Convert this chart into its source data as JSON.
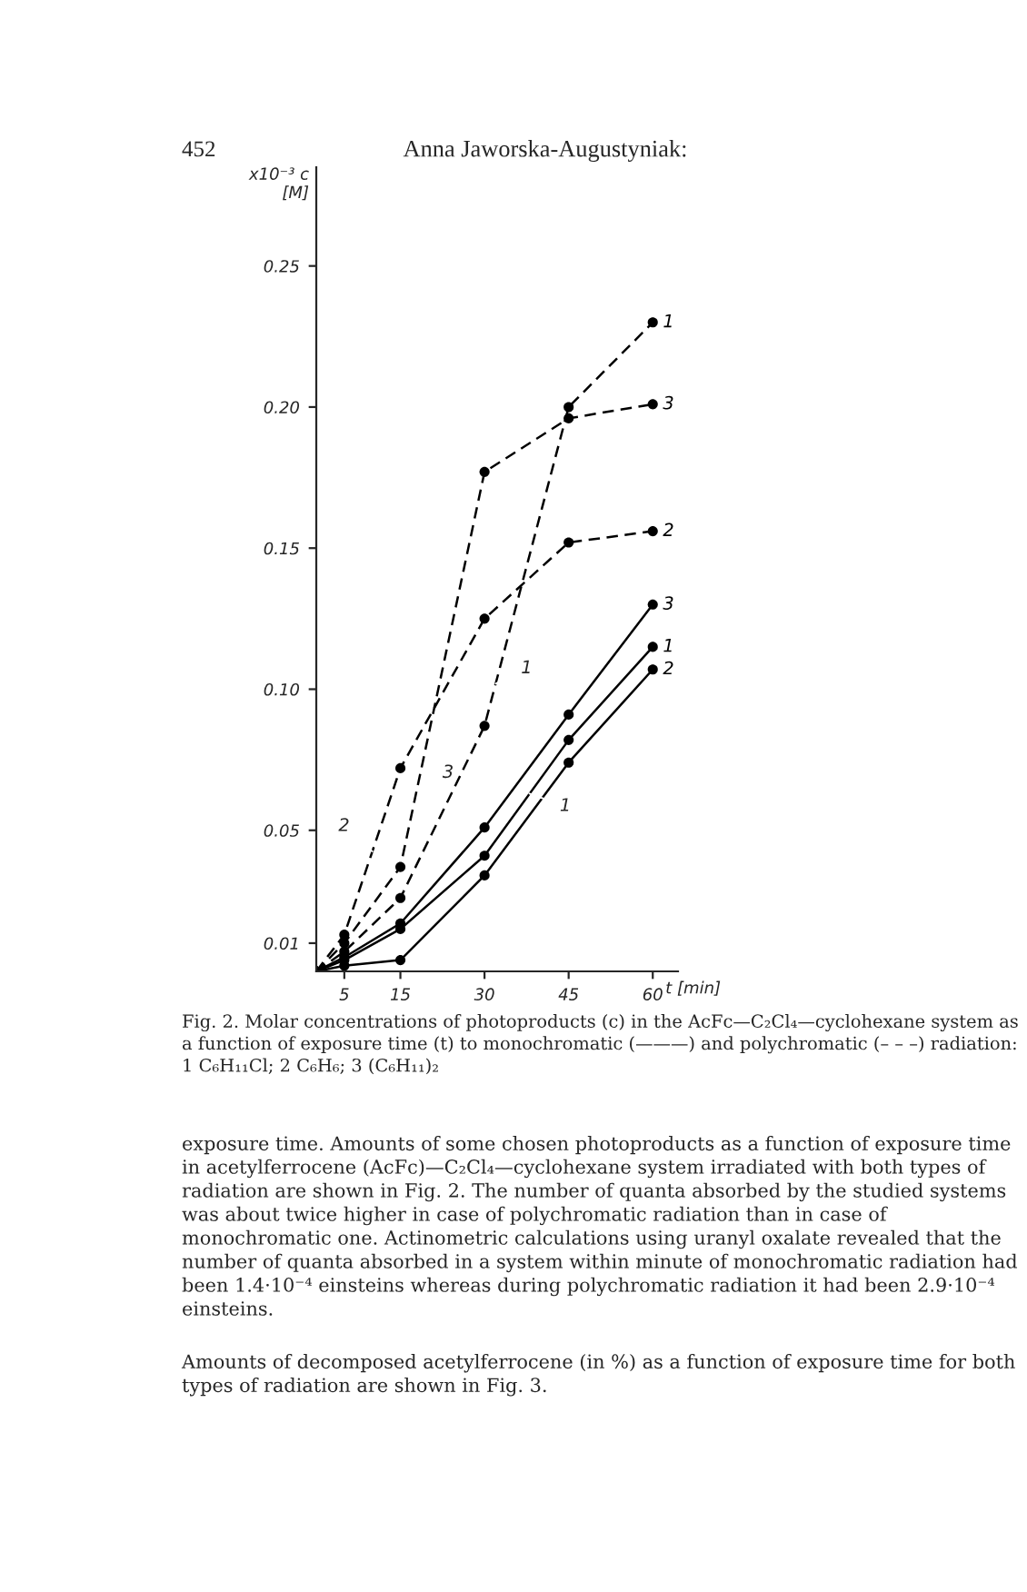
{
  "chart_data": {
    "type": "line",
    "title": "Anna Jaworska-Augustyniak:",
    "subtitle": "452",
    "xlabel": "t [min]",
    "ylabel": "x10⁻³ c\n[M]",
    "series": [
      {
        "name": "1",
        "color": "#000000",
        "line_style": "solid",
        "x": [
          0,
          5,
          15,
          30,
          45,
          60
        ],
        "values": [
          0,
          0.004,
          0.015,
          0.041,
          0.082,
          0.115
        ]
      },
      {
        "name": "2",
        "color": "#000000",
        "line_style": "solid",
        "x": [
          0,
          5,
          15,
          30,
          45,
          60
        ],
        "values": [
          0,
          0.002,
          0.004,
          0.034,
          0.074,
          0.107
        ]
      },
      {
        "name": "3",
        "color": "#000000",
        "line_style": "solid",
        "x": [
          0,
          5,
          15,
          30,
          45,
          60
        ],
        "values": [
          0,
          0.005,
          0.017,
          0.051,
          0.091,
          0.13
        ]
      },
      {
        "name": "1",
        "color": "#000000",
        "line_style": "dashed",
        "x": [
          0,
          5,
          15,
          30,
          45,
          60
        ],
        "values": [
          0,
          0.007,
          0.026,
          0.087,
          0.2,
          0.23
        ]
      },
      {
        "name": "2",
        "color": "#000000",
        "line_style": "dashed",
        "x": [
          0,
          5,
          15,
          30,
          45,
          60
        ],
        "values": [
          0,
          0.013,
          0.072,
          0.125,
          0.152,
          0.156
        ]
      },
      {
        "name": "3",
        "color": "#000000",
        "line_style": "dashed",
        "x": [
          0,
          5,
          15,
          30,
          45,
          60
        ],
        "values": [
          0,
          0.01,
          0.037,
          0.177,
          0.196,
          0.201
        ]
      }
    ],
    "marker": "circle",
    "xlim": [
      0,
      64.5
    ],
    "xticks": [
      5,
      15,
      30,
      45,
      60
    ],
    "ylim": [
      0,
      0.285
    ],
    "yticks": [
      {
        "value": 0.01,
        "label": "0.01"
      },
      {
        "value": 0.05,
        "label": "0.05"
      },
      {
        "value": 0.1,
        "label": "0.10"
      },
      {
        "value": 0.15,
        "label": "0.15"
      },
      {
        "value": 0.2,
        "label": "0.20"
      },
      {
        "value": 0.25,
        "label": "0.25"
      }
    ],
    "grid": false,
    "legend": false,
    "annotations": [
      {
        "text": "2",
        "x": 10,
        "y": 0.0425
      },
      {
        "text": "3",
        "x": 18,
        "y": 0.065
      },
      {
        "text": "1",
        "x": 32,
        "y": 0.102
      },
      {
        "text": "1",
        "x": 38,
        "y": 0.063
      },
      "Fig. 2. Molar concentrations of photoproducts (c) in the AcFc—C₂Cl₄—cyclohexane system as a function of exposure time (t) to monochromatic (———) and polychromatic (– – –) radiation: 1 C₆H₁₁Cl; 2 C₆H₆; 3 (C₆H₁₁)₂",
      "exposure time. Amounts of some chosen photoproducts as a function of exposure time in acetylferrocene (AcFc)—C₂Cl₄—cyclohexane system irradiated with both types of radiation are shown in Fig. 2. The number of quanta absorbed by the studied systems was about twice higher in case of polychromatic radiation than in case of monochromatic one. Actinometric calculations using uranyl oxalate revealed that the number of quanta absorbed in a system within minute of monochromatic radiation had been 1.4·10⁻⁴ einsteins whereas during polychromatic radiation it had been 2.9·10⁻⁴ einsteins.",
      "Amounts of decomposed acetylferrocene (in %) as a function of exposure time for both types of radiation are shown in Fig. 3."
    ]
  }
}
